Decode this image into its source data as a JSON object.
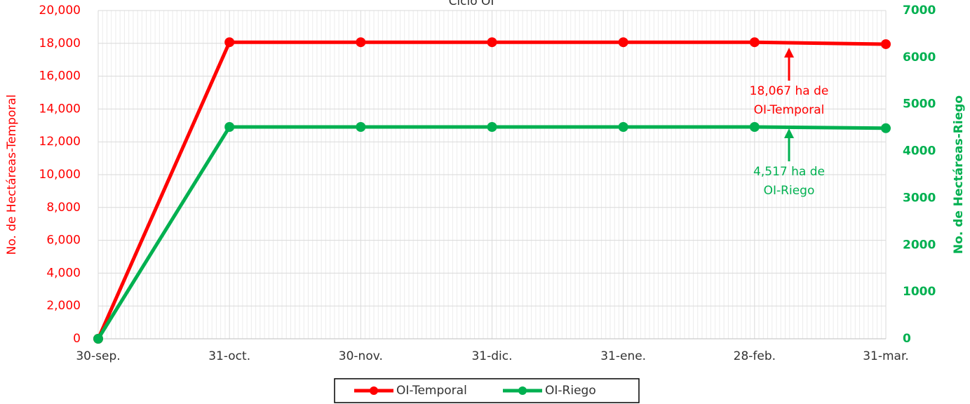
{
  "chart_data": {
    "type": "line",
    "title": "Ciclo OI",
    "categories": [
      "30-sep.",
      "31-oct.",
      "30-nov.",
      "31-dic.",
      "31-ene.",
      "28-feb.",
      "31-mar."
    ],
    "series": [
      {
        "name": "OI-Temporal",
        "color": "#ff0000",
        "values": [
          0,
          18067,
          18067,
          18067,
          18067,
          18067,
          17950
        ]
      },
      {
        "name": "OI-Riego",
        "color": "#00b050",
        "axis": "y2",
        "values": [
          0,
          4517,
          4517,
          4517,
          4517,
          4517,
          4490
        ]
      }
    ],
    "ylabel": "No. de Hectáreas-Temporal",
    "y2label": "No. de Hectáreas-Riego",
    "ylim": [
      0,
      20000
    ],
    "yticks": [
      0,
      {
        "value": 2000,
        "label": "2,000"
      },
      {
        "value": 4000,
        "label": "4,000"
      },
      {
        "value": 6000,
        "label": "6,000"
      },
      {
        "value": 8000,
        "label": "8,000"
      },
      {
        "value": 10000,
        "label": "10,000"
      },
      {
        "value": 12000,
        "label": "12,000"
      },
      {
        "value": 14000,
        "label": "14,000"
      },
      {
        "value": 16000,
        "label": "16,000"
      },
      {
        "value": 18000,
        "label": "18,000"
      },
      {
        "value": 20000,
        "label": "20,000"
      }
    ],
    "y2lim": [
      0,
      7000
    ],
    "y2ticks": [
      0,
      1000,
      2000,
      3000,
      4000,
      5000,
      6000,
      7000
    ],
    "annotations": [
      {
        "lines": [
          "18,067 ha de",
          "OI-Temporal"
        ],
        "color": "#ff0000"
      },
      {
        "lines": [
          "4,517 ha de",
          "OI-Riego"
        ],
        "color": "#00b050"
      }
    ],
    "grid": true,
    "legend": "bottom"
  }
}
